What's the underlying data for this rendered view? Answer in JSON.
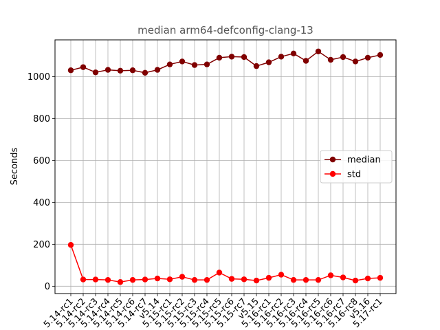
{
  "chart_data": {
    "type": "line",
    "title": "median arm64-defconfig-clang-13",
    "xlabel": "",
    "ylabel": "Seconds",
    "categories": [
      "5.14-rc1",
      "5.14-rc2",
      "5.14-rc3",
      "5.14-rc4",
      "5.14-rc5",
      "5.14-rc6",
      "5.14-rc7",
      "v5.14",
      "5.15-rc1",
      "5.15-rc2",
      "5.15-rc3",
      "5.15-rc4",
      "5.15-rc5",
      "5.15-rc6",
      "5.15-rc7",
      "v5.15",
      "5.16-rc1",
      "5.16-rc2",
      "5.16-rc3",
      "5.16-rc4",
      "5.16-rc5",
      "5.16-rc6",
      "5.16-rc7",
      "5.16-rc8",
      "v5.16",
      "5.17-rc1"
    ],
    "yticks": [
      0,
      200,
      400,
      600,
      800,
      1000
    ],
    "ylim": [
      -35,
      1175
    ],
    "grid": true,
    "legend_position": "center-right",
    "series": [
      {
        "name": "median",
        "color": "#800000",
        "values": [
          1030,
          1045,
          1020,
          1032,
          1028,
          1030,
          1018,
          1032,
          1058,
          1072,
          1055,
          1058,
          1090,
          1095,
          1093,
          1050,
          1068,
          1095,
          1110,
          1075,
          1120,
          1080,
          1093,
          1072,
          1090,
          1103
        ]
      },
      {
        "name": "std",
        "color": "#ff0000",
        "values": [
          197,
          32,
          32,
          30,
          20,
          30,
          32,
          37,
          33,
          45,
          30,
          30,
          65,
          35,
          33,
          27,
          40,
          55,
          30,
          30,
          30,
          52,
          42,
          27,
          37,
          40
        ]
      }
    ]
  }
}
